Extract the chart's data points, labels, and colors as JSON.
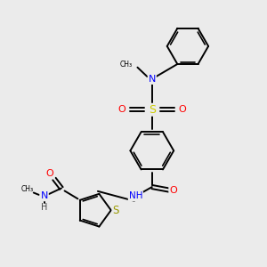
{
  "background_color": "#ebebeb",
  "bond_color": "#000000",
  "N_color": "#0000ff",
  "O_color": "#ff0000",
  "S_sulfonyl_color": "#cccc00",
  "S_thiophene_color": "#999900",
  "figsize": [
    3.0,
    3.0
  ],
  "dpi": 100,
  "xlim": [
    0,
    300
  ],
  "ylim": [
    0,
    300
  ]
}
